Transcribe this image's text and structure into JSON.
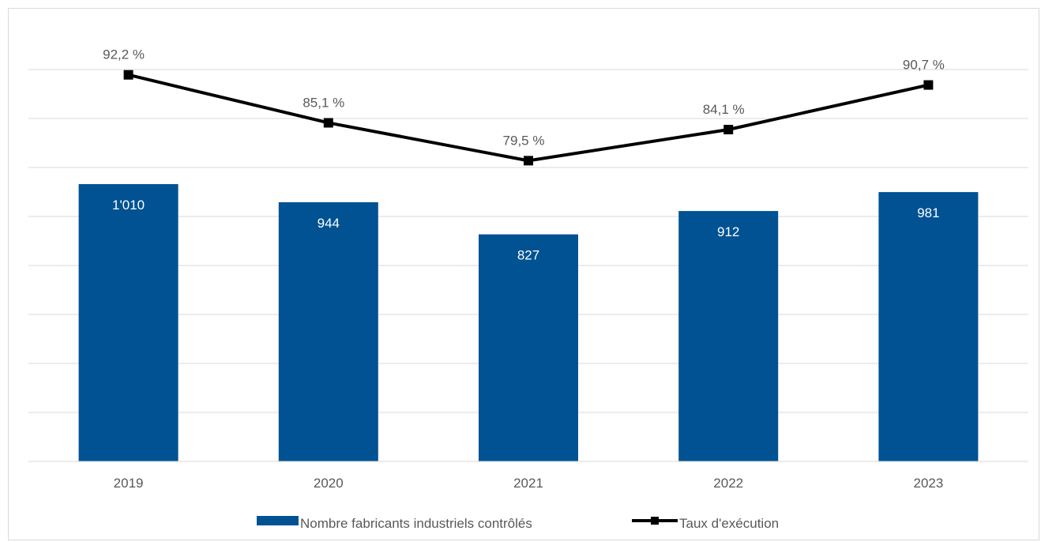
{
  "chart_data": {
    "type": "bar+line",
    "categories": [
      "2019",
      "2020",
      "2021",
      "2022",
      "2023"
    ],
    "series": [
      {
        "name": "Nombre fabricants industriels contrôlés",
        "type": "bar",
        "color": "#005293",
        "values": [
          1010,
          944,
          827,
          912,
          981
        ],
        "labels": [
          "1'010",
          "944",
          "827",
          "912",
          "981"
        ]
      },
      {
        "name": "Taux d'exécution",
        "type": "line",
        "color": "#000000",
        "values": [
          92.2,
          85.1,
          79.5,
          84.1,
          90.7
        ],
        "labels": [
          "92,2 %",
          "85,1 %",
          "79,5 %",
          "84,1 %",
          "90,7 %"
        ]
      }
    ],
    "bar_axis_range": [
      0,
      1600
    ],
    "line_axis_range": [
      35,
      100
    ],
    "grid": true,
    "legend_position": "bottom"
  }
}
